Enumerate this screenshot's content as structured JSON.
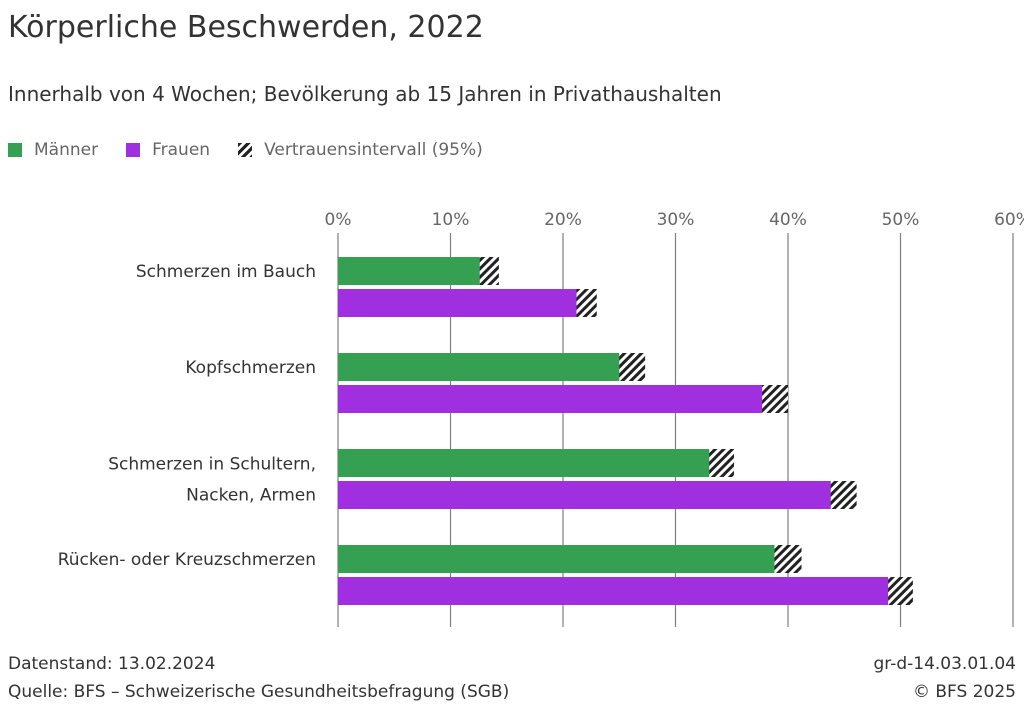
{
  "title": "Körperliche Beschwerden, 2022",
  "subtitle": "Innerhalb von 4 Wochen; Bevölkerung ab 15 Jahren in Privathaushalten",
  "legend": {
    "men": "Männer",
    "women": "Frauen",
    "ci": "Vertrauensintervall (95%)"
  },
  "colors": {
    "men": "#36a052",
    "women": "#a02fe0",
    "grid": "#7f7f7f"
  },
  "chart_data": {
    "type": "bar",
    "orientation": "horizontal",
    "categories": [
      [
        "Schmerzen im Bauch"
      ],
      [
        "Kopfschmerzen"
      ],
      [
        "Schmerzen in Schultern,",
        "Nacken, Armen"
      ],
      [
        "Rücken- oder Kreuzschmerzen"
      ]
    ],
    "series": [
      {
        "name": "Männer",
        "values": [
          13.5,
          26.2,
          34.0,
          40.0
        ],
        "ci_low": [
          12.6,
          25.0,
          33.0,
          38.8
        ],
        "ci_high": [
          14.3,
          27.3,
          35.2,
          41.2
        ]
      },
      {
        "name": "Frauen",
        "values": [
          22.1,
          38.9,
          45.0,
          50.0
        ],
        "ci_low": [
          21.2,
          37.7,
          43.8,
          48.9
        ],
        "ci_high": [
          23.0,
          40.0,
          46.1,
          51.1
        ]
      }
    ],
    "xlim": [
      0,
      60
    ],
    "ticks": [
      0,
      10,
      20,
      30,
      40,
      50,
      60
    ],
    "tick_suffix": "%",
    "grid": true,
    "legend_position": "top-left"
  },
  "footer": {
    "datenstand": "Datenstand: 13.02.2024",
    "quelle": "Quelle: BFS – Schweizerische Gesundheitsbefragung (SGB)",
    "code": "gr-d-14.03.01.04",
    "copyright": "© BFS 2025"
  }
}
